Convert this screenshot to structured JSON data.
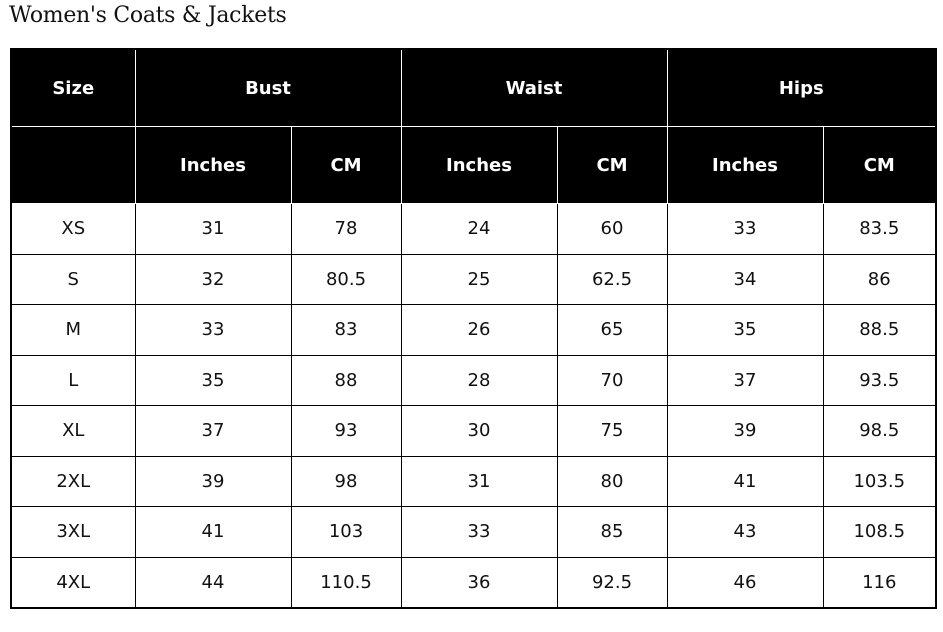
{
  "title": "Women's Coats & Jackets",
  "header": {
    "size": "Size",
    "groups": [
      "Bust",
      "Waist",
      "Hips"
    ],
    "sub": [
      "Inches",
      "CM",
      "Inches",
      "CM",
      "Inches",
      "CM"
    ]
  },
  "rows": [
    [
      "XS",
      "31",
      "78",
      "24",
      "60",
      "33",
      "83.5"
    ],
    [
      "S",
      "32",
      "80.5",
      "25",
      "62.5",
      "34",
      "86"
    ],
    [
      "M",
      "33",
      "83",
      "26",
      "65",
      "35",
      "88.5"
    ],
    [
      "L",
      "35",
      "88",
      "28",
      "70",
      "37",
      "93.5"
    ],
    [
      "XL",
      "37",
      "93",
      "30",
      "75",
      "39",
      "98.5"
    ],
    [
      "2XL",
      "39",
      "98",
      "31",
      "80",
      "41",
      "103.5"
    ],
    [
      "3XL",
      "41",
      "103",
      "33",
      "85",
      "43",
      "108.5"
    ],
    [
      "4XL",
      "44",
      "110.5",
      "36",
      "92.5",
      "46",
      "116"
    ]
  ]
}
